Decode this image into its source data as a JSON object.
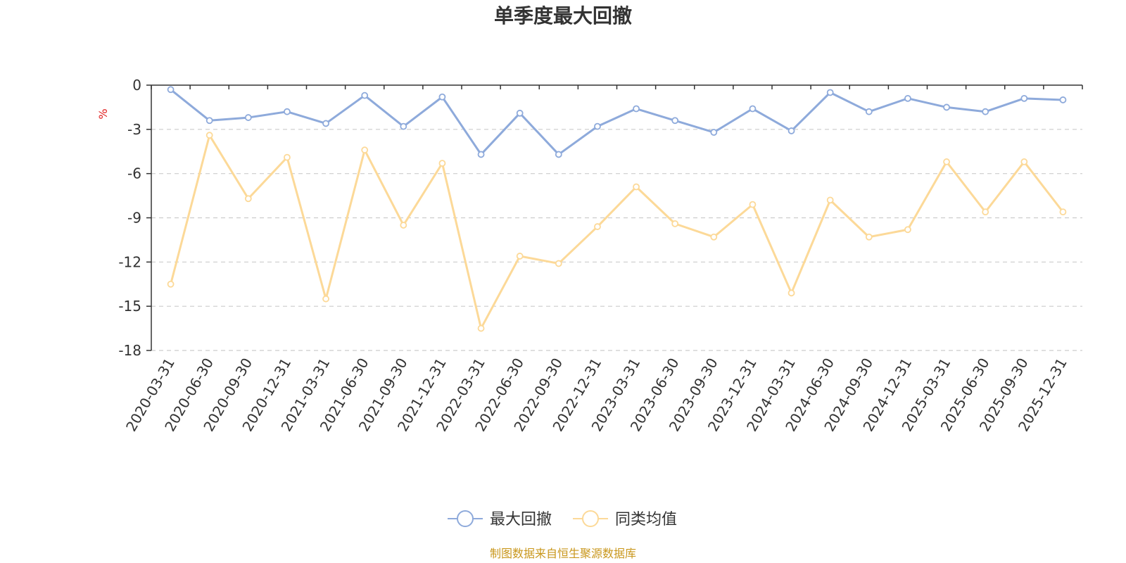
{
  "chart_data": {
    "type": "line",
    "title": "单季度最大回撤",
    "ylabel": "%",
    "ylim": [
      -18,
      0
    ],
    "yticks": [
      0,
      -3,
      -6,
      -9,
      -12,
      -15,
      -18
    ],
    "grid": true,
    "legend_position": "bottom",
    "categories": [
      "2020-03-31",
      "2020-06-30",
      "2020-09-30",
      "2020-12-31",
      "2021-03-31",
      "2021-06-30",
      "2021-09-30",
      "2021-12-31",
      "2022-03-31",
      "2022-06-30",
      "2022-09-30",
      "2022-12-31",
      "2023-03-31",
      "2023-06-30",
      "2023-09-30",
      "2023-12-31",
      "2024-03-31",
      "2024-06-30",
      "2024-09-30",
      "2024-12-31",
      "2025-03-31",
      "2025-06-30",
      "2025-09-30",
      "2025-12-31"
    ],
    "series": [
      {
        "name": "最大回撤",
        "color": "#8eaadb",
        "values": [
          -0.3,
          -2.4,
          -2.2,
          -1.8,
          -2.6,
          -0.7,
          -2.8,
          -0.8,
          -4.7,
          -1.9,
          -4.7,
          -2.8,
          -1.6,
          -2.4,
          -3.2,
          -1.6,
          -3.1,
          -0.5,
          -1.8,
          -0.9,
          -1.5,
          -1.8,
          -0.9,
          -1.0
        ]
      },
      {
        "name": "同类均值",
        "color": "#fcd998",
        "values": [
          -13.5,
          -3.4,
          -7.7,
          -4.9,
          -14.5,
          -4.4,
          -9.5,
          -5.3,
          -16.5,
          -11.6,
          -12.1,
          -9.6,
          -6.9,
          -9.4,
          -10.3,
          -8.1,
          -14.1,
          -7.8,
          -10.3,
          -9.8,
          -5.2,
          -8.6,
          -5.2,
          -8.6
        ]
      }
    ],
    "source": "制图数据来自恒生聚源数据库"
  },
  "colors": {
    "unit_label": "#e02020",
    "source_text": "#c9971c",
    "axis": "#333333",
    "grid": "#cccccc"
  }
}
